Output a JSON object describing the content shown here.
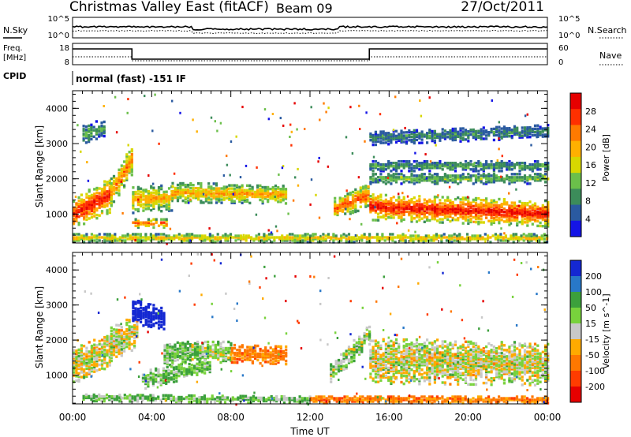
{
  "header": {
    "station": "Christmas Valley East (fitACF)",
    "beam": "Beam 09",
    "date": "27/Oct/2011"
  },
  "top_panel": {
    "left_label": "N.Sky",
    "left_ticks": [
      "10^5",
      "10^0"
    ],
    "right_label": "N.Search",
    "right_ticks": [
      "10^5",
      "10^0"
    ]
  },
  "freq_panel": {
    "left_label_1": "Freq.",
    "left_label_2": "[MHz]",
    "left_ticks": [
      "18",
      "8"
    ],
    "right_label": "Nave",
    "right_ticks": [
      "60",
      "0"
    ]
  },
  "cpid": {
    "label": "CPID",
    "text": "normal (fast) -151 IF"
  },
  "chart_data": [
    {
      "type": "heatmap",
      "panel": "power",
      "ylabel": "Slant Range [km]",
      "xlabel": "",
      "x_ticks": [
        "00:00",
        "04:00",
        "08:00",
        "12:00",
        "16:00",
        "20:00",
        "00:00"
      ],
      "xlim_hours": [
        0,
        24
      ],
      "ylim_km": [
        180,
        4500
      ],
      "y_ticks": [
        1000,
        2000,
        3000,
        4000
      ],
      "colorbar_label": "Power [dB]",
      "colorbar_ticks": [
        "28",
        "24",
        "20",
        "16",
        "12",
        "8",
        "4"
      ],
      "colorbar_range": [
        0,
        30
      ],
      "palette": [
        "#1414e6",
        "#2a5aa0",
        "#3c8c5a",
        "#6bbf4a",
        "#d7d700",
        "#ffb000",
        "#ff7a00",
        "#ff3000",
        "#e60000"
      ],
      "echo_bands": [
        {
          "t": [
            0.0,
            1.9
          ],
          "center_km": [
            1050,
            1600
          ],
          "width_km": [
            420,
            500
          ],
          "peak_db": 28
        },
        {
          "t": [
            1.9,
            3.0
          ],
          "center_km": [
            1650,
            2650
          ],
          "width_km": [
            420,
            450
          ],
          "peak_db": 22
        },
        {
          "t": [
            3.0,
            5.0
          ],
          "center_km": [
            1450,
            1500
          ],
          "width_km": [
            380,
            360
          ],
          "peak_db": 20
        },
        {
          "t": [
            5.0,
            10.8
          ],
          "center_km": [
            1650,
            1600
          ],
          "width_km": [
            280,
            260
          ],
          "peak_db": 20
        },
        {
          "t": [
            3.0,
            4.8
          ],
          "center_km": [
            780,
            780
          ],
          "width_km": [
            120,
            120
          ],
          "peak_db": 24
        },
        {
          "t": [
            13.2,
            15.0
          ],
          "center_km": [
            1200,
            1600
          ],
          "width_km": [
            300,
            350
          ],
          "peak_db": 24
        },
        {
          "t": [
            15.0,
            24.0
          ],
          "center_km": [
            1250,
            1050
          ],
          "width_km": [
            380,
            360
          ],
          "peak_db": 28
        },
        {
          "t": [
            15.0,
            24.0
          ],
          "center_km": [
            2050,
            2050
          ],
          "width_km": [
            150,
            150
          ],
          "peak_db": 12
        },
        {
          "t": [
            15.0,
            24.0
          ],
          "center_km": [
            2400,
            2400
          ],
          "width_km": [
            140,
            140
          ],
          "peak_db": 10
        },
        {
          "t": [
            0.0,
            24.0
          ],
          "center_km": [
            360,
            360
          ],
          "width_km": [
            120,
            120
          ],
          "peak_db": 18
        },
        {
          "t": [
            0.5,
            1.6
          ],
          "center_km": [
            3300,
            3500
          ],
          "width_km": [
            260,
            240
          ],
          "peak_db": 10
        },
        {
          "t": [
            15.0,
            24.0
          ],
          "center_km": [
            3200,
            3400
          ],
          "width_km": [
            200,
            200
          ],
          "peak_db": 8
        }
      ]
    },
    {
      "type": "heatmap",
      "panel": "velocity",
      "ylabel": "Slant Range [km]",
      "xlabel": "Time UT",
      "x_ticks": [
        "00:00",
        "04:00",
        "08:00",
        "12:00",
        "16:00",
        "20:00",
        "00:00"
      ],
      "xlim_hours": [
        0,
        24
      ],
      "ylim_km": [
        180,
        4500
      ],
      "y_ticks": [
        1000,
        2000,
        3000,
        4000
      ],
      "colorbar_label": "Velocity [m s^-1]",
      "colorbar_ticks": [
        "200",
        "100",
        "50",
        "15",
        "-15",
        "-50",
        "-100",
        "-200"
      ],
      "palette": [
        "#1428d2",
        "#2878c8",
        "#3ca03c",
        "#78d23c",
        "#c8c8c8",
        "#ffaa00",
        "#ff7800",
        "#ff3c00",
        "#e60000"
      ],
      "echo_bands": [
        {
          "t": [
            0.0,
            1.9
          ],
          "center_km": [
            1300,
            1750
          ],
          "width_km": [
            500,
            500
          ],
          "velocity": 0
        },
        {
          "t": [
            1.9,
            3.3
          ],
          "center_km": [
            1900,
            2300
          ],
          "width_km": [
            500,
            500
          ],
          "velocity": 0
        },
        {
          "t": [
            3.0,
            4.6
          ],
          "center_km": [
            2850,
            2650
          ],
          "width_km": [
            350,
            300
          ],
          "velocity": 200
        },
        {
          "t": [
            4.6,
            6.0
          ],
          "center_km": [
            1600,
            1750
          ],
          "width_km": [
            350,
            320
          ],
          "velocity": 30
        },
        {
          "t": [
            6.0,
            8.0
          ],
          "center_km": [
            1700,
            1700
          ],
          "width_km": [
            300,
            300
          ],
          "velocity": 15
        },
        {
          "t": [
            8.0,
            10.8
          ],
          "center_km": [
            1650,
            1600
          ],
          "width_km": [
            250,
            250
          ],
          "velocity": -50
        },
        {
          "t": [
            3.5,
            7.0
          ],
          "center_km": [
            900,
            1300
          ],
          "width_km": [
            260,
            200
          ],
          "velocity": 30
        },
        {
          "t": [
            13.0,
            15.0
          ],
          "center_km": [
            1100,
            2200
          ],
          "width_km": [
            300,
            300
          ],
          "velocity": 20
        },
        {
          "t": [
            15.0,
            24.0
          ],
          "center_km": [
            1450,
            1350
          ],
          "width_km": [
            650,
            600
          ],
          "velocity": 0
        },
        {
          "t": [
            0.5,
            12.0
          ],
          "center_km": [
            400,
            340
          ],
          "width_km": [
            100,
            100
          ],
          "velocity": 30
        },
        {
          "t": [
            12.0,
            24.0
          ],
          "center_km": [
            340,
            340
          ],
          "width_km": [
            100,
            100
          ],
          "velocity": -50
        }
      ]
    }
  ]
}
